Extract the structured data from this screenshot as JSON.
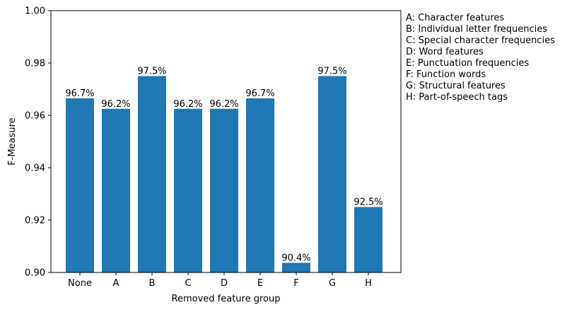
{
  "chart_data": {
    "type": "bar",
    "xlabel": "Removed feature group",
    "ylabel": "F-Measure",
    "ylim": [
      0.9,
      1.0
    ],
    "yticks": [
      "0.90",
      "0.92",
      "0.94",
      "0.96",
      "0.98",
      "1.00"
    ],
    "ytick_values": [
      0.9,
      0.92,
      0.94,
      0.96,
      0.98,
      1.0
    ],
    "categories": [
      "None",
      "A",
      "B",
      "C",
      "D",
      "E",
      "F",
      "G",
      "H"
    ],
    "values": [
      0.9665,
      0.9625,
      0.975,
      0.9625,
      0.9625,
      0.9665,
      0.9037,
      0.975,
      0.925
    ],
    "data_labels": [
      "96.7%",
      "96.2%",
      "97.5%",
      "96.2%",
      "96.2%",
      "96.7%",
      "90.4%",
      "97.5%",
      "92.5%"
    ],
    "bar_color": "#1f77b4",
    "grid": false,
    "legend_placement": "outside-right",
    "legend_lines": [
      "A: Character features",
      "B: Individual letter frequencies",
      "C: Special character frequencies",
      "D: Word features",
      "E: Punctuation frequencies",
      "F: Function words",
      "G: Structural features",
      "H: Part-of-speech tags"
    ]
  }
}
